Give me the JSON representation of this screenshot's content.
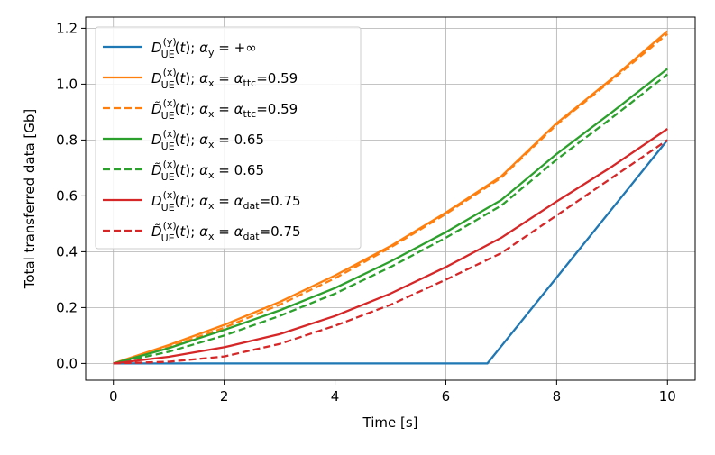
{
  "chart_data": {
    "type": "line",
    "title": "",
    "xlabel": "Time [s]",
    "ylabel": "Total transferred data [Gb]",
    "xlim": [
      -0.5,
      10.5
    ],
    "ylim": [
      -0.06,
      1.24
    ],
    "xticks": [
      0,
      2,
      4,
      6,
      8,
      10
    ],
    "xtick_labels": [
      "0",
      "2",
      "4",
      "6",
      "8",
      "10"
    ],
    "yticks": [
      0.0,
      0.2,
      0.4,
      0.6,
      0.8,
      1.0,
      1.2
    ],
    "ytick_labels": [
      "0.0",
      "0.2",
      "0.4",
      "0.6",
      "0.8",
      "1.0",
      "1.2"
    ],
    "grid": true,
    "legend_position": "upper-left",
    "series": [
      {
        "name": "D_UE^(y)(t); α_y = +∞",
        "color": "#1f77b4",
        "dash": "solid",
        "legend": {
          "sym": "D",
          "tilde": false,
          "sup": "(y)",
          "sub": "UE",
          "var": "t",
          "alpha": "α",
          "alpha_sub": "y",
          "rest": " = +∞",
          "mid_sub": "",
          "suffix": ""
        },
        "x": [
          0,
          6.75,
          10
        ],
        "y": [
          0,
          0,
          0.8
        ]
      },
      {
        "name": "D_UE^(x)(t); α_x = α_ttc=0.59",
        "color": "#ff7f0e",
        "dash": "solid",
        "legend": {
          "sym": "D",
          "tilde": false,
          "sup": "(x)",
          "sub": "UE",
          "var": "t",
          "alpha": "α",
          "alpha_sub": "x",
          "rest": " = ",
          "mid": "α",
          "mid_sub": "ttc",
          "suffix": "=0.59"
        },
        "x": [
          0,
          1,
          2,
          3,
          4,
          5,
          6,
          7,
          8,
          9,
          10
        ],
        "y": [
          0,
          0.066,
          0.138,
          0.22,
          0.315,
          0.42,
          0.54,
          0.67,
          0.86,
          1.02,
          1.19
        ]
      },
      {
        "name": "D̃_UE^(x)(t); α_x = α_ttc=0.59",
        "color": "#ff7f0e",
        "dash": "dashed",
        "legend": {
          "sym": "D",
          "tilde": true,
          "sup": "(x)",
          "sub": "UE",
          "var": "t",
          "alpha": "α",
          "alpha_sub": "x",
          "rest": " = ",
          "mid": "α",
          "mid_sub": "ttc",
          "suffix": "=0.59"
        },
        "x": [
          0,
          1,
          2,
          3,
          4,
          5,
          6,
          7,
          8,
          9,
          10
        ],
        "y": [
          0,
          0.058,
          0.128,
          0.21,
          0.305,
          0.415,
          0.535,
          0.665,
          0.855,
          1.015,
          1.18
        ]
      },
      {
        "name": "D_UE^(x)(t); α_x = 0.65",
        "color": "#2ca02c",
        "dash": "solid",
        "legend": {
          "sym": "D",
          "tilde": false,
          "sup": "(x)",
          "sub": "UE",
          "var": "t",
          "alpha": "α",
          "alpha_sub": "x",
          "rest": " = 0.65",
          "mid": "",
          "mid_sub": "",
          "suffix": ""
        },
        "x": [
          0,
          1,
          2,
          3,
          4,
          5,
          6,
          7,
          8,
          9,
          10
        ],
        "y": [
          0,
          0.055,
          0.12,
          0.19,
          0.27,
          0.365,
          0.47,
          0.585,
          0.75,
          0.9,
          1.055
        ]
      },
      {
        "name": "D̃_UE^(x)(t); α_x = 0.65",
        "color": "#2ca02c",
        "dash": "dashed",
        "legend": {
          "sym": "D",
          "tilde": true,
          "sup": "(x)",
          "sub": "UE",
          "var": "t",
          "alpha": "α",
          "alpha_sub": "x",
          "rest": " = 0.65",
          "mid": "",
          "mid_sub": "",
          "suffix": ""
        },
        "x": [
          0,
          1,
          2,
          3,
          4,
          5,
          6,
          7,
          8,
          9,
          10
        ],
        "y": [
          0,
          0.042,
          0.1,
          0.17,
          0.25,
          0.345,
          0.45,
          0.565,
          0.73,
          0.88,
          1.035
        ]
      },
      {
        "name": "D_UE^(x)(t); α_x = α_dat=0.75",
        "color": "#d62728",
        "dash": "solid",
        "legend": {
          "sym": "D",
          "tilde": false,
          "sup": "(x)",
          "sub": "UE",
          "var": "t",
          "alpha": "α",
          "alpha_sub": "x",
          "rest": " = ",
          "mid": "α",
          "mid_sub": "dat",
          "suffix": "=0.75"
        },
        "x": [
          0,
          1,
          2,
          3,
          4,
          5,
          6,
          7,
          8,
          9,
          10
        ],
        "y": [
          0,
          0.024,
          0.058,
          0.105,
          0.17,
          0.25,
          0.345,
          0.45,
          0.58,
          0.705,
          0.84
        ]
      },
      {
        "name": "D̃_UE^(x)(t); α_x = α_dat=0.75",
        "color": "#d62728",
        "dash": "dashed",
        "legend": {
          "sym": "D",
          "tilde": true,
          "sup": "(x)",
          "sub": "UE",
          "var": "t",
          "alpha": "α",
          "alpha_sub": "x",
          "rest": " = ",
          "mid": "α",
          "mid_sub": "dat",
          "suffix": "=0.75"
        },
        "x": [
          0,
          1,
          2,
          3,
          4,
          5,
          6,
          7,
          8,
          9,
          10
        ],
        "y": [
          0,
          0.006,
          0.025,
          0.07,
          0.135,
          0.21,
          0.3,
          0.395,
          0.53,
          0.665,
          0.8
        ]
      }
    ]
  }
}
